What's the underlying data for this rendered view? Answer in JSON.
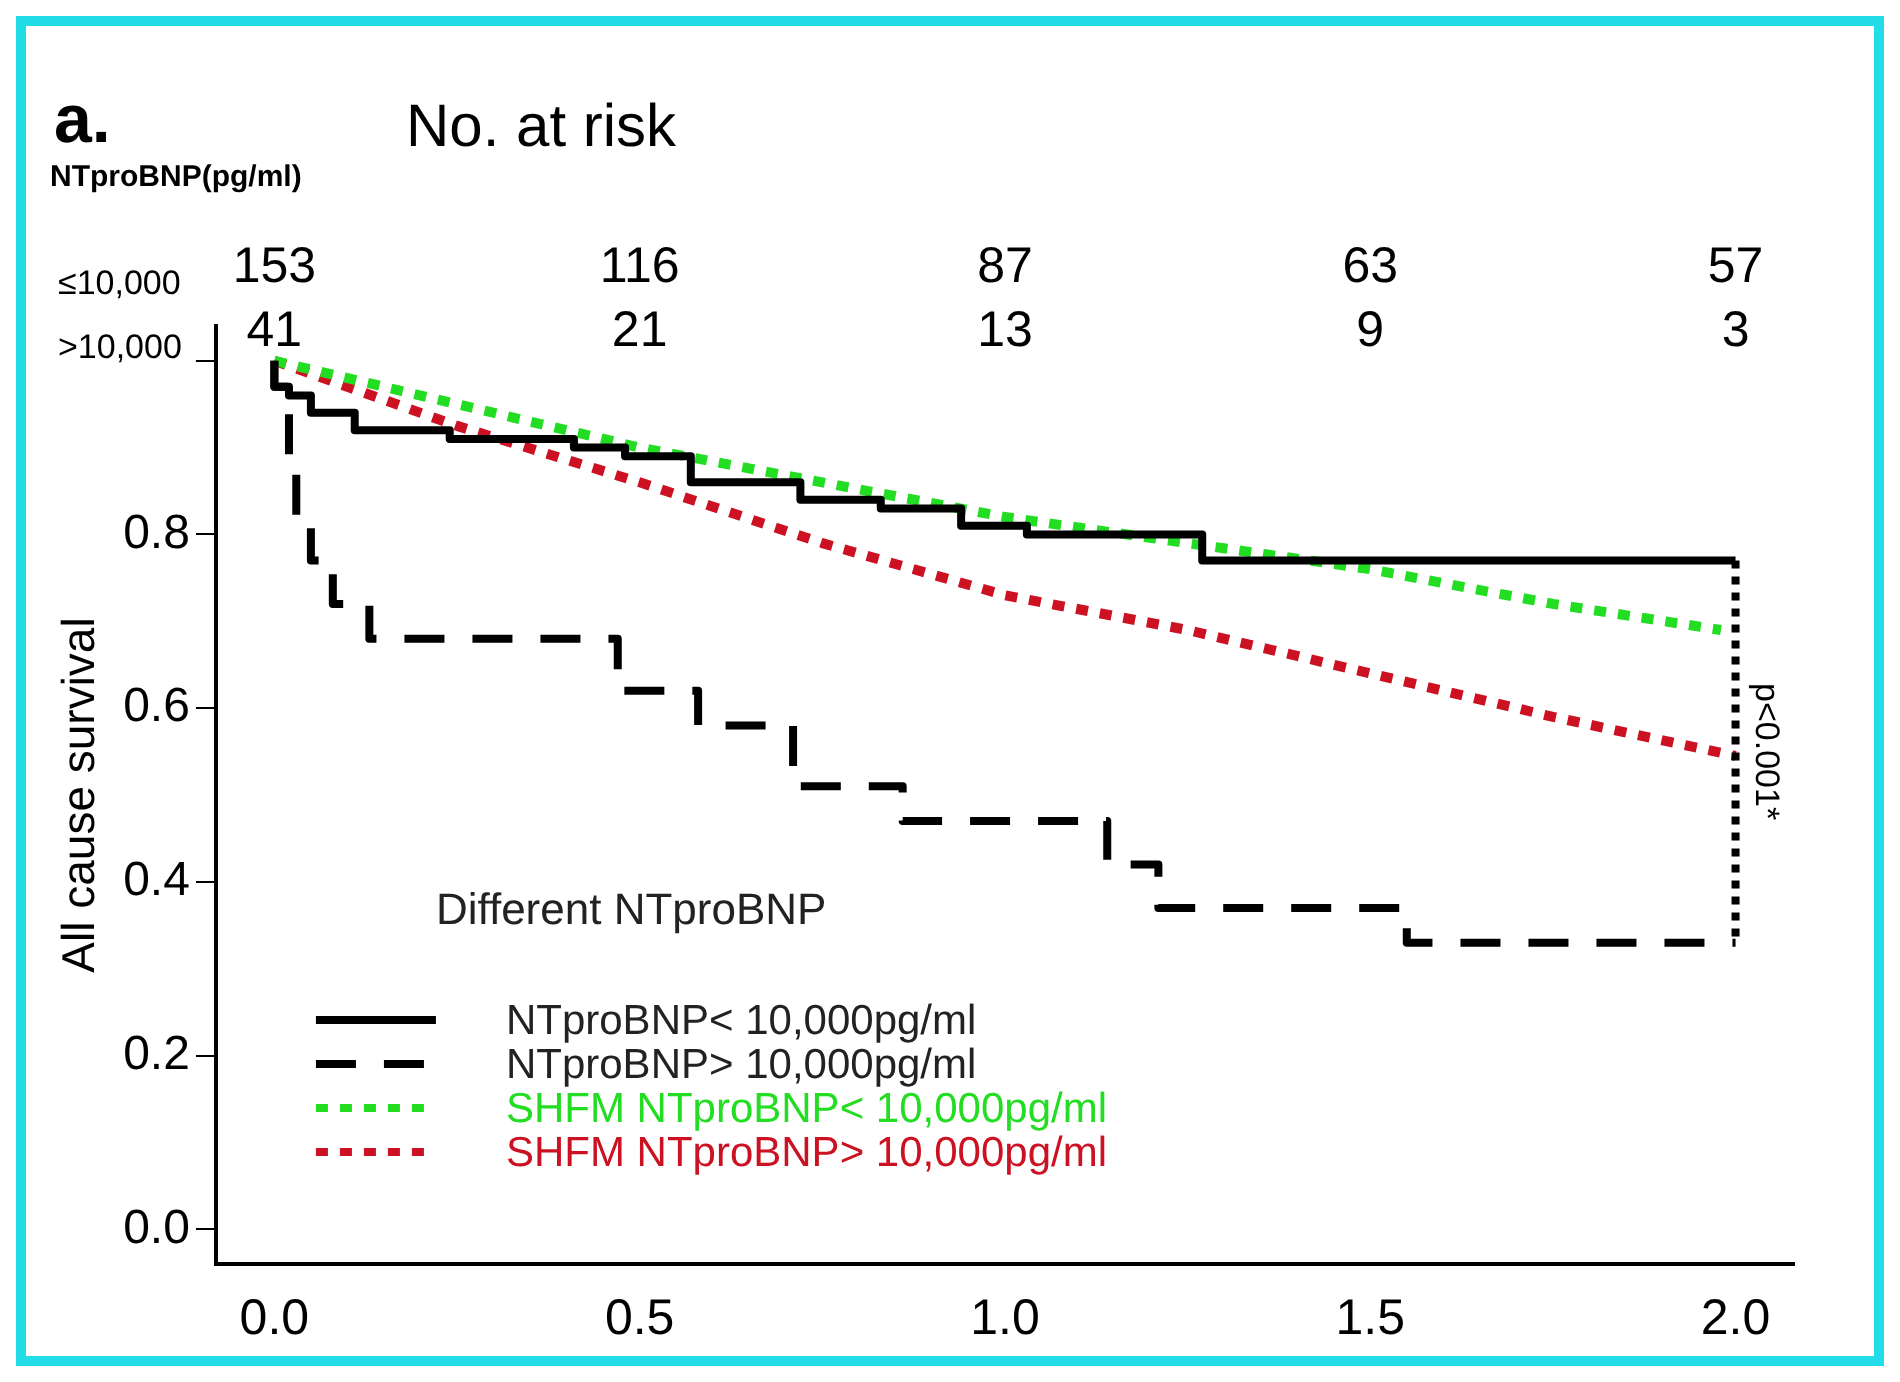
{
  "chart_data": {
    "type": "line",
    "title": "a.",
    "subtitle": "No. at risk",
    "ylabel": "All cause survival",
    "xlim": [
      -0.08,
      2.08
    ],
    "xticks": [
      {
        "value": 0,
        "label": "0.0"
      },
      {
        "value": 0.5,
        "label": "0.5"
      },
      {
        "value": 1,
        "label": "1.0"
      },
      {
        "value": 1.5,
        "label": "1.5"
      },
      {
        "value": 2,
        "label": "2.0"
      }
    ],
    "ylim": [
      -0.04,
      1.04
    ],
    "yticks": [
      {
        "value": 0,
        "label": "0.0"
      },
      0.2,
      0.4,
      0.6,
      0.8,
      {
        "value": 1,
        "label": null
      }
    ],
    "grid": false,
    "legend": "bottom left",
    "legend_title": "Different NTproBNP",
    "marker": "none",
    "annotations": [
      "NTproBNP(pg/ml)",
      "≤10,000",
      "153",
      "116",
      "87",
      "63",
      "57",
      ">10,000",
      "41",
      "21",
      "13",
      "9",
      "3",
      {
        "text": "p<0.001*",
        "x": 2,
        "y": 0.55
      }
    ],
    "series": [
      {
        "name": "NTproBNP< 10,000pg/ml",
        "type": "step",
        "line_style": "solid",
        "color": "#000000",
        "x": [
          0,
          0.02,
          0.05,
          0.11,
          0.24,
          0.41,
          0.48,
          0.57,
          0.72,
          0.83,
          0.94,
          1.03,
          1.27,
          1.36,
          2.0
        ],
        "values": [
          1,
          0.97,
          0.96,
          0.94,
          0.92,
          0.91,
          0.9,
          0.89,
          0.86,
          0.84,
          0.83,
          0.81,
          0.8,
          0.77,
          0.77
        ]
      },
      {
        "name": "NTproBNP> 10,000pg/ml",
        "type": "step",
        "line_style": "dashed",
        "color": "#000000",
        "x": [
          0,
          0.02,
          0.03,
          0.05,
          0.08,
          0.13,
          0.47,
          0.58,
          0.71,
          0.86,
          1.14,
          1.21,
          1.55,
          1.62,
          2.0
        ],
        "values": [
          1,
          0.97,
          0.88,
          0.82,
          0.77,
          0.72,
          0.68,
          0.62,
          0.58,
          0.51,
          0.47,
          0.42,
          0.37,
          0.33,
          0.33
        ]
      },
      {
        "name": "SHFM NTproBNP< 10,000pg/ml",
        "type": "line",
        "line_style": "dotted",
        "color": "#22dd22",
        "x": [
          0,
          0.25,
          0.5,
          0.75,
          1.0,
          1.25,
          1.5,
          1.75,
          1.98
        ],
        "values": [
          1,
          0.95,
          0.9,
          0.86,
          0.82,
          0.79,
          0.76,
          0.72,
          0.69
        ]
      },
      {
        "name": "SHFM NTproBNP> 10,000pg/ml",
        "type": "line",
        "line_style": "dotted",
        "color": "#cc1122",
        "x": [
          0,
          0.1,
          0.25,
          0.5,
          0.75,
          1.0,
          1.25,
          1.5,
          1.75,
          2.0
        ],
        "values": [
          1,
          0.97,
          0.925,
          0.86,
          0.79,
          0.73,
          0.69,
          0.64,
          0.59,
          0.545
        ]
      }
    ]
  }
}
